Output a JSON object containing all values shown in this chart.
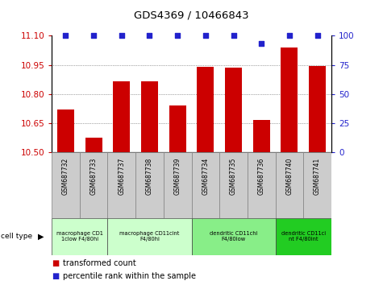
{
  "title": "GDS4369 / 10466843",
  "samples": [
    "GSM687732",
    "GSM687733",
    "GSM687737",
    "GSM687738",
    "GSM687739",
    "GSM687734",
    "GSM687735",
    "GSM687736",
    "GSM687740",
    "GSM687741"
  ],
  "bar_values": [
    10.72,
    10.575,
    10.865,
    10.865,
    10.74,
    10.94,
    10.935,
    10.665,
    11.04,
    10.945
  ],
  "dot_values": [
    100,
    100,
    100,
    100,
    100,
    100,
    100,
    93,
    100,
    100
  ],
  "ylim_left": [
    10.5,
    11.1
  ],
  "ylim_right": [
    0,
    100
  ],
  "yticks_left": [
    10.5,
    10.65,
    10.8,
    10.95,
    11.1
  ],
  "yticks_right": [
    0,
    25,
    50,
    75,
    100
  ],
  "bar_color": "#cc0000",
  "dot_color": "#2222cc",
  "cell_type_groups": [
    {
      "label": "macrophage CD1\n1clow F4/80hi",
      "start": 0,
      "end": 2,
      "color": "#ccffcc"
    },
    {
      "label": "macrophage CD11cint\nF4/80hi",
      "start": 2,
      "end": 5,
      "color": "#ccffcc"
    },
    {
      "label": "dendritic CD11chi\nF4/80low",
      "start": 5,
      "end": 8,
      "color": "#88ee88"
    },
    {
      "label": "dendritic CD11ci\nnt F4/80int",
      "start": 8,
      "end": 10,
      "color": "#22cc22"
    }
  ],
  "legend_items": [
    {
      "label": "transformed count",
      "color": "#cc0000"
    },
    {
      "label": "percentile rank within the sample",
      "color": "#2222cc"
    }
  ],
  "cell_type_label": "cell type",
  "sample_bg": "#cccccc",
  "bg_color": "#ffffff",
  "grid_color": "#555555"
}
